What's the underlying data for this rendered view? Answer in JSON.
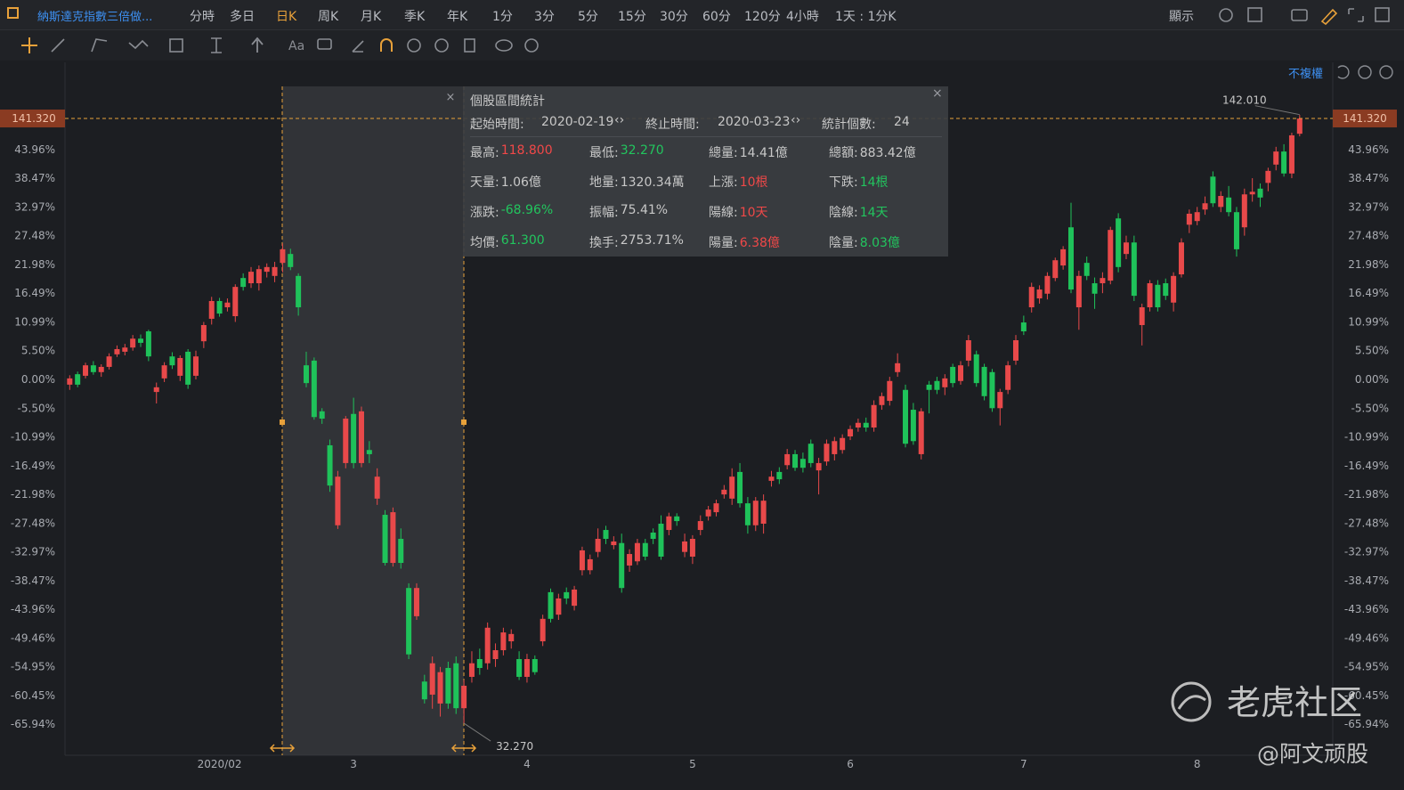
{
  "header": {
    "symbol": "納斯達克指數三倍做...",
    "tabs": [
      {
        "label": "分時"
      },
      {
        "label": "多日"
      },
      {
        "label": "日K",
        "active": true
      },
      {
        "label": "周K"
      },
      {
        "label": "月K"
      },
      {
        "label": "季K"
      },
      {
        "label": "年K"
      },
      {
        "label": "1分"
      },
      {
        "label": "3分"
      },
      {
        "label": "5分"
      },
      {
        "label": "15分"
      },
      {
        "label": "30分"
      },
      {
        "label": "60分"
      },
      {
        "label": "120分"
      },
      {
        "label": "4小時"
      },
      {
        "label": "1天 : 1分K"
      }
    ],
    "display": "顯示"
  },
  "toolbar": {
    "text_tool": "Aa",
    "adjust": "不複權"
  },
  "stats_panel": {
    "title": "個股區間統計",
    "start_label": "起始時間:",
    "start": "2020-02-19",
    "end_label": "終止時間:",
    "end": "2020-03-23",
    "count_label": "統計個數:",
    "count": "24",
    "rows": [
      [
        {
          "label": "最高:",
          "value": "118.800",
          "color": "#f04848"
        },
        {
          "label": "最低:",
          "value": "32.270",
          "color": "#22c55e"
        },
        {
          "label": "總量:",
          "value": "14.41億",
          "color": "#c8c8c8"
        },
        {
          "label": "總額:",
          "value": "883.42億",
          "color": "#c8c8c8"
        }
      ],
      [
        {
          "label": "天量:",
          "value": "1.06億",
          "color": "#c8c8c8"
        },
        {
          "label": "地量:",
          "value": "1320.34萬",
          "color": "#c8c8c8"
        },
        {
          "label": "上漲:",
          "value": "10根",
          "color": "#f04848"
        },
        {
          "label": "下跌:",
          "value": "14根",
          "color": "#22c55e"
        }
      ],
      [
        {
          "label": "漲跌:",
          "value": "-68.96%",
          "color": "#22c55e"
        },
        {
          "label": "振幅:",
          "value": "75.41%",
          "color": "#c8c8c8"
        },
        {
          "label": "陽線:",
          "value": "10天",
          "color": "#f04848"
        },
        {
          "label": "陰線:",
          "value": "14天",
          "color": "#22c55e"
        }
      ],
      [
        {
          "label": "均價:",
          "value": "61.300",
          "color": "#22c55e"
        },
        {
          "label": "換手:",
          "value": "2753.71%",
          "color": "#c8c8c8"
        },
        {
          "label": "陽量:",
          "value": "6.38億",
          "color": "#f04848"
        },
        {
          "label": "陰量:",
          "value": "8.03億",
          "color": "#22c55e"
        }
      ]
    ]
  },
  "watermark": {
    "brand": "老虎社区",
    "author": "@阿文顽股"
  },
  "chart_data": {
    "type": "candlestick",
    "up_color": "#e8494a",
    "down_color": "#1fc25a",
    "ylim": [
      -71.9,
      60.66
    ],
    "xlim": [
      -0.6,
      160.2
    ],
    "yticks": [
      {
        "value": 43.96,
        "label": "43.96%"
      },
      {
        "value": 38.47,
        "label": "38.47%"
      },
      {
        "value": 32.97,
        "label": "32.97%"
      },
      {
        "value": 27.48,
        "label": "27.48%"
      },
      {
        "value": 21.98,
        "label": "21.98%"
      },
      {
        "value": 16.49,
        "label": "16.49%"
      },
      {
        "value": 10.99,
        "label": "10.99%"
      },
      {
        "value": 5.5,
        "label": "5.50%"
      },
      {
        "value": 0,
        "label": "0.00%"
      },
      {
        "value": -5.5,
        "label": "-5.50%"
      },
      {
        "value": -10.99,
        "label": "-10.99%"
      },
      {
        "value": -16.49,
        "label": "-16.49%"
      },
      {
        "value": -21.98,
        "label": "-21.98%"
      },
      {
        "value": -27.48,
        "label": "-27.48%"
      },
      {
        "value": -32.97,
        "label": "-32.97%"
      },
      {
        "value": -38.47,
        "label": "-38.47%"
      },
      {
        "value": -43.96,
        "label": "-43.96%"
      },
      {
        "value": -49.46,
        "label": "-49.46%"
      },
      {
        "value": -54.95,
        "label": "-54.95%"
      },
      {
        "value": -60.45,
        "label": "-60.45%"
      },
      {
        "value": -65.94,
        "label": "-65.94%"
      }
    ],
    "xticks": [
      {
        "value": 19,
        "label": "2020/02"
      },
      {
        "value": 36,
        "label": "3"
      },
      {
        "value": 58,
        "label": "4"
      },
      {
        "value": 79,
        "label": "5"
      },
      {
        "value": 99,
        "label": "6"
      },
      {
        "value": 121,
        "label": "7"
      },
      {
        "value": 143,
        "label": "8"
      }
    ],
    "last_price": {
      "value": 49.92,
      "label": "141.320"
    },
    "high_label": {
      "value": 50.66,
      "label": "142.010"
    },
    "low_label": {
      "value": -65.77,
      "label": "32.270"
    },
    "candles": [
      [
        -1.0,
        0.8,
        -2.0,
        0.2
      ],
      [
        1.0,
        1.5,
        -1.5,
        -1.0
      ],
      [
        0.7,
        3.2,
        0.2,
        2.7
      ],
      [
        2.7,
        3.5,
        0.9,
        1.4
      ],
      [
        1.4,
        2.9,
        0.5,
        2.4
      ],
      [
        2.4,
        5.0,
        1.9,
        4.4
      ],
      [
        4.8,
        6.5,
        4.3,
        5.8
      ],
      [
        5.3,
        6.8,
        4.6,
        6.1
      ],
      [
        6.1,
        8.5,
        5.5,
        7.8
      ],
      [
        7.8,
        8.6,
        6.2,
        7.0
      ],
      [
        9.2,
        9.5,
        3.5,
        4.4
      ],
      [
        -2.4,
        -0.6,
        -4.6,
        -1.5
      ],
      [
        0.2,
        3.3,
        -0.5,
        2.7
      ],
      [
        4.4,
        5.2,
        2.0,
        2.7
      ],
      [
        0.7,
        4.6,
        -0.3,
        4.1
      ],
      [
        5.3,
        5.8,
        -1.8,
        -1.0
      ],
      [
        0.7,
        5.5,
        0.0,
        4.4
      ],
      [
        7.3,
        11.0,
        6.0,
        10.4
      ],
      [
        11.6,
        15.8,
        10.5,
        15.0
      ],
      [
        15.0,
        15.6,
        12.0,
        12.6
      ],
      [
        13.8,
        15.5,
        13.0,
        14.7
      ],
      [
        12.1,
        18.2,
        11.0,
        17.7
      ],
      [
        19.4,
        20.3,
        17.0,
        17.7
      ],
      [
        18.4,
        21.5,
        17.5,
        20.6
      ],
      [
        18.4,
        21.8,
        17.0,
        21.1
      ],
      [
        20.6,
        22.2,
        19.5,
        21.5
      ],
      [
        19.8,
        22.5,
        18.6,
        21.5
      ],
      [
        22.3,
        26.0,
        20.5,
        24.9
      ],
      [
        24.0,
        25.0,
        20.9,
        21.5
      ],
      [
        19.8,
        20.3,
        12.2,
        13.8
      ],
      [
        2.7,
        5.3,
        -1.5,
        -0.7
      ],
      [
        3.6,
        4.2,
        -7.7,
        -7.2
      ],
      [
        -6.1,
        -5.5,
        -8.5,
        -7.5
      ],
      [
        -12.6,
        -11.5,
        -21.5,
        -20.3
      ],
      [
        -27.9,
        -17.5,
        -28.6,
        -18.6
      ],
      [
        -16.0,
        -7.0,
        -17.0,
        -7.5
      ],
      [
        -6.6,
        -3.5,
        -17.0,
        -16.0
      ],
      [
        -16.0,
        -5.2,
        -16.8,
        -6.1
      ],
      [
        -13.5,
        -11.8,
        -16.0,
        -14.3
      ],
      [
        -22.8,
        -17.0,
        -24.0,
        -18.6
      ],
      [
        -25.9,
        -25.0,
        -35.6,
        -35.1
      ],
      [
        -35.1,
        -24.5,
        -35.8,
        -25.4
      ],
      [
        -30.5,
        -28.5,
        -36.2,
        -35.1
      ],
      [
        -39.9,
        -39.0,
        -53.5,
        -52.6
      ],
      [
        -45.3,
        -39.0,
        -46.0,
        -39.9
      ],
      [
        -57.8,
        -56.5,
        -62.0,
        -61.2
      ],
      [
        -60.3,
        -53.0,
        -63.0,
        -54.3
      ],
      [
        -62.0,
        -55.0,
        -64.5,
        -56.0
      ],
      [
        -55.2,
        -54.0,
        -63.0,
        -62.0
      ],
      [
        -54.3,
        -53.0,
        -64.0,
        -62.9
      ],
      [
        -62.9,
        -57.5,
        -65.8,
        -58.6
      ],
      [
        -56.9,
        -52.0,
        -58.0,
        -54.3
      ],
      [
        -53.5,
        -51.5,
        -56.5,
        -55.2
      ],
      [
        -54.3,
        -46.5,
        -55.5,
        -47.5
      ],
      [
        -53.5,
        -50.5,
        -55.0,
        -51.8
      ],
      [
        -51.8,
        -47.5,
        -52.8,
        -48.4
      ],
      [
        -50.1,
        -47.8,
        -51.5,
        -48.7
      ],
      [
        -53.5,
        -52.0,
        -57.5,
        -56.9
      ],
      [
        -56.9,
        -52.5,
        -58.0,
        -53.5
      ],
      [
        -53.5,
        -52.8,
        -56.5,
        -56.0
      ],
      [
        -50.1,
        -45.0,
        -51.0,
        -45.8
      ],
      [
        -40.7,
        -40.0,
        -46.5,
        -45.8
      ],
      [
        -45.0,
        -41.0,
        -46.0,
        -41.9
      ],
      [
        -40.7,
        -39.8,
        -43.0,
        -41.9
      ],
      [
        -43.3,
        -39.5,
        -44.2,
        -40.2
      ],
      [
        -36.5,
        -32.0,
        -37.5,
        -32.7
      ],
      [
        -36.5,
        -33.5,
        -37.3,
        -34.4
      ],
      [
        -33.0,
        -28.5,
        -34.0,
        -30.5
      ],
      [
        -28.8,
        -28.0,
        -31.5,
        -30.5
      ],
      [
        -31.7,
        -30.0,
        -32.5,
        -31.0
      ],
      [
        -31.3,
        -29.5,
        -40.8,
        -39.9
      ],
      [
        -35.6,
        -32.5,
        -36.8,
        -33.4
      ],
      [
        -34.8,
        -30.5,
        -35.5,
        -31.3
      ],
      [
        -31.3,
        -30.5,
        -34.6,
        -33.9
      ],
      [
        -29.3,
        -28.5,
        -31.5,
        -30.5
      ],
      [
        -27.6,
        -26.0,
        -34.5,
        -33.9
      ],
      [
        -28.8,
        -25.5,
        -29.8,
        -26.2
      ],
      [
        -26.2,
        -25.6,
        -28.0,
        -27.1
      ],
      [
        -33.0,
        -29.5,
        -34.0,
        -31.0
      ],
      [
        -33.9,
        -29.8,
        -35.3,
        -30.5
      ],
      [
        -28.8,
        -26.0,
        -29.8,
        -27.1
      ],
      [
        -26.2,
        -24.2,
        -27.0,
        -24.9
      ],
      [
        -25.4,
        -23.0,
        -26.2,
        -23.7
      ],
      [
        -22.0,
        -20.2,
        -22.8,
        -21.1
      ],
      [
        -22.8,
        -17.0,
        -24.0,
        -18.6
      ],
      [
        -17.7,
        -16.0,
        -24.5,
        -23.7
      ],
      [
        -23.7,
        -22.5,
        -29.5,
        -27.9
      ],
      [
        -27.9,
        -22.5,
        -29.0,
        -23.2
      ],
      [
        -27.6,
        -22.0,
        -29.5,
        -23.2
      ],
      [
        -19.4,
        -17.5,
        -20.5,
        -18.6
      ],
      [
        -17.7,
        -16.8,
        -20.0,
        -19.1
      ],
      [
        -16.4,
        -13.3,
        -17.2,
        -14.3
      ],
      [
        -14.3,
        -13.5,
        -17.5,
        -16.9
      ],
      [
        -15.2,
        -14.0,
        -17.8,
        -16.9
      ],
      [
        -12.3,
        -11.5,
        -16.8,
        -16.0
      ],
      [
        -17.4,
        -15.0,
        -22.0,
        -16.0
      ],
      [
        -15.7,
        -11.5,
        -16.5,
        -12.3
      ],
      [
        -14.3,
        -11.0,
        -15.5,
        -11.8
      ],
      [
        -13.5,
        -10.5,
        -14.2,
        -11.2
      ],
      [
        -10.9,
        -8.8,
        -11.6,
        -9.5
      ],
      [
        -9.2,
        -7.5,
        -10.0,
        -8.3
      ],
      [
        -8.3,
        -7.3,
        -10.0,
        -9.2
      ],
      [
        -9.2,
        -4.0,
        -10.0,
        -4.9
      ],
      [
        -4.9,
        -2.5,
        -5.8,
        -3.2
      ],
      [
        -4.1,
        0.5,
        -5.0,
        -0.3
      ],
      [
        1.4,
        5.0,
        0.5,
        3.1
      ],
      [
        -2.0,
        -1.0,
        -13.0,
        -12.3
      ],
      [
        -5.8,
        -4.5,
        -12.5,
        -11.8
      ],
      [
        -14.3,
        -5.5,
        -15.3,
        -6.1
      ],
      [
        -1.0,
        -0.3,
        -6.5,
        -2.0
      ],
      [
        -0.3,
        0.5,
        -2.8,
        -2.0
      ],
      [
        -1.5,
        1.0,
        -3.0,
        0.2
      ],
      [
        2.4,
        3.0,
        -1.5,
        -0.7
      ],
      [
        -0.3,
        3.5,
        -1.0,
        2.7
      ],
      [
        3.6,
        8.5,
        2.5,
        7.5
      ],
      [
        4.8,
        5.5,
        -1.4,
        -0.7
      ],
      [
        2.4,
        3.0,
        -4.0,
        -3.2
      ],
      [
        1.4,
        2.0,
        -6.2,
        -5.5
      ],
      [
        -5.5,
        -1.8,
        -8.8,
        -2.4
      ],
      [
        -2.0,
        3.5,
        -2.8,
        2.7
      ],
      [
        3.6,
        8.5,
        2.8,
        7.5
      ],
      [
        10.9,
        12.2,
        8.5,
        9.2
      ],
      [
        13.8,
        18.5,
        12.8,
        17.7
      ],
      [
        15.5,
        18.0,
        14.5,
        17.2
      ],
      [
        16.4,
        20.5,
        15.3,
        19.8
      ],
      [
        19.4,
        23.3,
        18.8,
        22.8
      ],
      [
        21.8,
        25.5,
        21.0,
        24.9
      ],
      [
        29.1,
        33.8,
        16.5,
        17.2
      ],
      [
        13.8,
        20.8,
        9.5,
        19.8
      ],
      [
        22.3,
        23.5,
        19.0,
        19.8
      ],
      [
        18.4,
        19.5,
        13.5,
        16.4
      ],
      [
        18.4,
        20.5,
        16.5,
        19.4
      ],
      [
        18.9,
        29.2,
        18.2,
        28.6
      ],
      [
        30.8,
        31.8,
        20.5,
        21.5
      ],
      [
        24.0,
        27.5,
        23.0,
        26.2
      ],
      [
        26.2,
        27.5,
        15.0,
        16.0
      ],
      [
        10.4,
        14.5,
        6.5,
        13.8
      ],
      [
        13.8,
        19.0,
        13.0,
        18.4
      ],
      [
        18.1,
        19.0,
        13.0,
        13.8
      ],
      [
        18.4,
        19.3,
        15.2,
        16.0
      ],
      [
        14.7,
        20.5,
        13.0,
        19.8
      ],
      [
        20.1,
        27.0,
        19.5,
        26.2
      ],
      [
        29.6,
        32.5,
        28.0,
        31.7
      ],
      [
        30.3,
        33.0,
        29.5,
        32.0
      ],
      [
        32.5,
        35.0,
        31.5,
        33.7
      ],
      [
        38.8,
        39.8,
        33.0,
        33.7
      ],
      [
        33.0,
        36.0,
        32.0,
        35.1
      ],
      [
        34.8,
        37.0,
        31.2,
        32.0
      ],
      [
        32.0,
        33.0,
        23.5,
        24.9
      ],
      [
        29.1,
        36.5,
        27.5,
        35.4
      ],
      [
        35.4,
        38.5,
        34.0,
        35.9
      ],
      [
        36.5,
        37.5,
        33.0,
        34.8
      ],
      [
        37.6,
        40.5,
        36.0,
        39.9
      ],
      [
        41.1,
        44.5,
        40.0,
        43.6
      ],
      [
        43.6,
        45.0,
        38.8,
        39.4
      ],
      [
        39.4,
        47.2,
        38.5,
        46.7
      ],
      [
        47.0,
        50.6,
        46.5,
        49.9
      ]
    ]
  }
}
